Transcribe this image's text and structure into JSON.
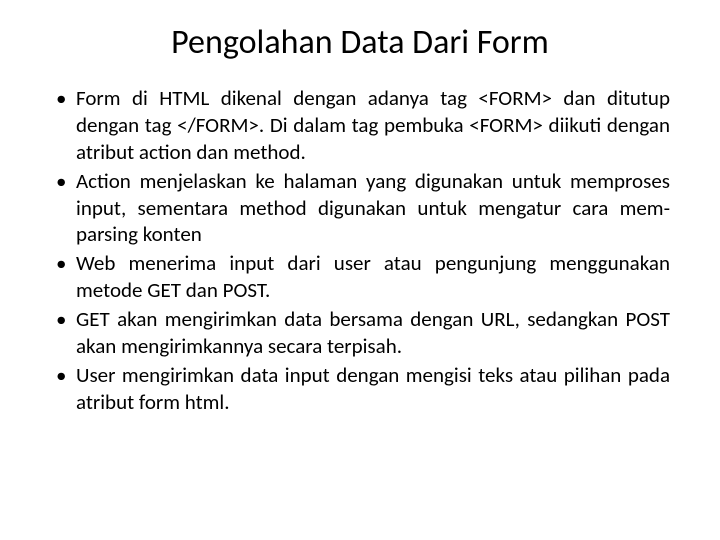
{
  "title": {
    "text": "Pengolahan Data Dari Form",
    "fontsize": 34,
    "color": "#000000"
  },
  "bullets": {
    "fontsize": 21,
    "line_height": 1.28,
    "color": "#000000",
    "items": [
      "Form di HTML dikenal dengan adanya tag <FORM> dan ditutup dengan tag </FORM>. Di dalam tag pembuka <FORM> diikuti dengan atribut action dan method.",
      "Action menjelaskan ke halaman yang digunakan untuk memproses input, sementara method digunakan untuk mengatur cara mem-parsing konten",
      "Web menerima input dari user atau pengunjung menggunakan metode GET dan POST.",
      "GET akan mengirimkan data bersama dengan URL, sedangkan POST akan mengirimkannya secara terpisah.",
      "User mengirimkan data input dengan mengisi teks atau pilihan pada atribut form html."
    ]
  },
  "background_color": "#ffffff"
}
